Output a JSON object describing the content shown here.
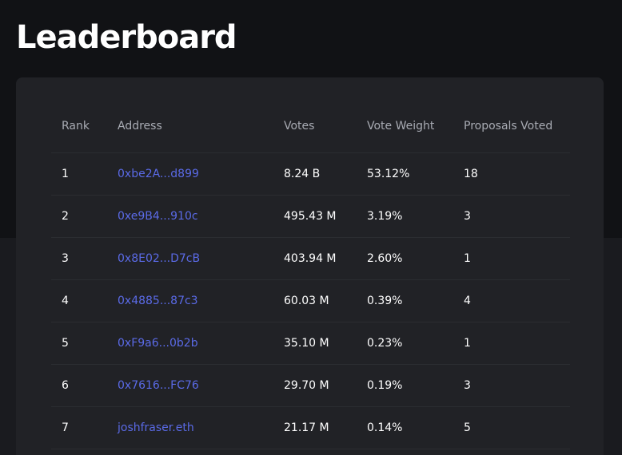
{
  "page": {
    "title": "Leaderboard"
  },
  "table": {
    "columns": {
      "rank": "Rank",
      "address": "Address",
      "votes": "Votes",
      "vote_weight": "Vote Weight",
      "proposals_voted": "Proposals Voted"
    },
    "rows": [
      {
        "rank": "1",
        "address": "0xbe2A...d899",
        "votes": "8.24 B",
        "vote_weight": "53.12%",
        "proposals_voted": "18"
      },
      {
        "rank": "2",
        "address": "0xe9B4...910c",
        "votes": "495.43 M",
        "vote_weight": "3.19%",
        "proposals_voted": "3"
      },
      {
        "rank": "3",
        "address": "0x8E02...D7cB",
        "votes": "403.94 M",
        "vote_weight": "2.60%",
        "proposals_voted": "1"
      },
      {
        "rank": "4",
        "address": "0x4885...87c3",
        "votes": "60.03 M",
        "vote_weight": "0.39%",
        "proposals_voted": "4"
      },
      {
        "rank": "5",
        "address": "0xF9a6...0b2b",
        "votes": "35.10 M",
        "vote_weight": "0.23%",
        "proposals_voted": "1"
      },
      {
        "rank": "6",
        "address": "0x7616...FC76",
        "votes": "29.70 M",
        "vote_weight": "0.19%",
        "proposals_voted": "3"
      },
      {
        "rank": "7",
        "address": "joshfraser.eth",
        "votes": "21.17 M",
        "vote_weight": "0.14%",
        "proposals_voted": "5"
      }
    ]
  },
  "colors": {
    "page_background": "#111215",
    "card_background": "#212226",
    "link": "#5a6ae6",
    "header_text": "#a8abb3"
  }
}
